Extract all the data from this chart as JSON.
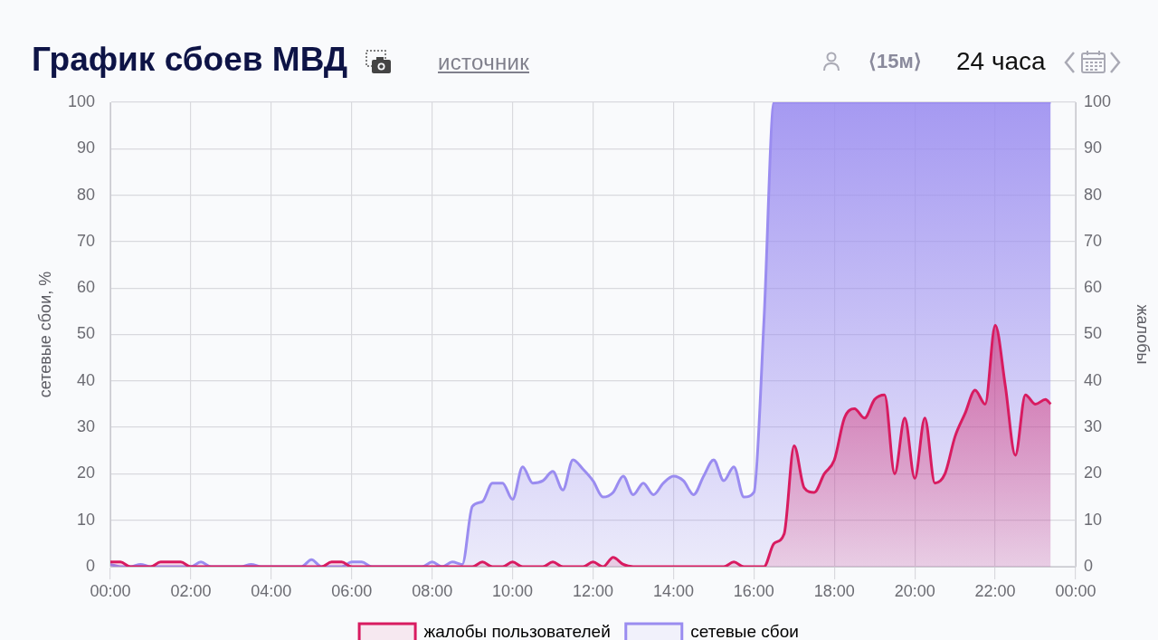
{
  "chart_data": {
    "type": "area",
    "title": "График сбоев МВД",
    "annotations": [
      "источник",
      "⟨15м⟩",
      "24 часа"
    ],
    "ylabel": "сетевые сбои, %",
    "y2label": "жалобы",
    "x": [
      0,
      0.25,
      0.5,
      0.75,
      1,
      1.25,
      1.5,
      1.75,
      2,
      2.25,
      2.5,
      2.75,
      3,
      3.25,
      3.5,
      3.75,
      4,
      4.25,
      4.5,
      4.75,
      5,
      5.25,
      5.5,
      5.75,
      6,
      6.25,
      6.5,
      6.75,
      7,
      7.25,
      7.5,
      7.75,
      8,
      8.25,
      8.5,
      8.75,
      9,
      9.25,
      9.5,
      9.75,
      10,
      10.25,
      10.5,
      10.75,
      11,
      11.25,
      11.5,
      11.75,
      12,
      12.25,
      12.5,
      12.75,
      13,
      13.25,
      13.5,
      13.75,
      14,
      14.25,
      14.5,
      14.75,
      15,
      15.25,
      15.5,
      15.75,
      16,
      16.25,
      16.5,
      16.75,
      17,
      17.25,
      17.5,
      17.75,
      18,
      18.25,
      18.5,
      18.75,
      19,
      19.25,
      19.5,
      19.75,
      20,
      20.25,
      20.5,
      20.75,
      21,
      21.25,
      21.5,
      21.75,
      22,
      22.25,
      22.5,
      22.75,
      23,
      23.25,
      23.38
    ],
    "xlim": [
      0,
      24
    ],
    "xticks": [
      {
        "value": 0,
        "label": "00:00"
      },
      {
        "value": 2,
        "label": "02:00"
      },
      {
        "value": 4,
        "label": "04:00"
      },
      {
        "value": 6,
        "label": "06:00"
      },
      {
        "value": 8,
        "label": "08:00"
      },
      {
        "value": 10,
        "label": "10:00"
      },
      {
        "value": 12,
        "label": "12:00"
      },
      {
        "value": 14,
        "label": "14:00"
      },
      {
        "value": 16,
        "label": "16:00"
      },
      {
        "value": 18,
        "label": "18:00"
      },
      {
        "value": 20,
        "label": "20:00"
      },
      {
        "value": 22,
        "label": "22:00"
      },
      {
        "value": 24,
        "label": "00:00"
      }
    ],
    "ylim": [
      0,
      100
    ],
    "yticks": [
      0,
      10,
      20,
      30,
      40,
      50,
      60,
      70,
      80,
      90,
      100
    ],
    "y2lim": [
      0,
      100
    ],
    "y2ticks": [
      0,
      10,
      20,
      30,
      40,
      50,
      60,
      70,
      80,
      90,
      100
    ],
    "grid": true,
    "legend": "bottom",
    "series": [
      {
        "name": "жалобы пользователей",
        "color": "#d81b60",
        "axis": "y2",
        "values": [
          1,
          1,
          0,
          0,
          0,
          1,
          1,
          1,
          0,
          0,
          0,
          0,
          0,
          0,
          0,
          0,
          0,
          0,
          0,
          0,
          0,
          0,
          1,
          1,
          0,
          0,
          0,
          0,
          0,
          0,
          0,
          0,
          0,
          0,
          0,
          0,
          0,
          1,
          0,
          0,
          1,
          0,
          0,
          0,
          1,
          0,
          0,
          0,
          1,
          0,
          2,
          0.5,
          0,
          0,
          0,
          0,
          0,
          0,
          0,
          0,
          0,
          0,
          1,
          0,
          0,
          0,
          5,
          7,
          26,
          17,
          16,
          20,
          23,
          32,
          34,
          32,
          36,
          37,
          20,
          32,
          19,
          32,
          18,
          20,
          28,
          33,
          38,
          35,
          52,
          39,
          24,
          37,
          35,
          36,
          35
        ]
      },
      {
        "name": "сетевые сбои",
        "color": "#9a8cf0",
        "values": [
          0.5,
          0,
          0,
          0.5,
          0,
          0,
          0,
          0,
          0,
          1,
          0,
          0,
          0,
          0,
          0.5,
          0,
          0,
          0,
          0,
          0,
          1.5,
          0,
          0,
          0,
          1,
          1,
          0,
          0,
          0,
          0,
          0,
          0,
          1,
          0,
          1,
          0.5,
          13,
          14,
          18,
          18,
          14.5,
          21.5,
          18,
          18.5,
          20.5,
          16.5,
          23,
          21,
          18.5,
          15,
          16,
          19.5,
          15.5,
          18,
          15.5,
          18,
          19.5,
          18.5,
          15.5,
          19.5,
          23,
          18.5,
          21.5,
          15,
          16,
          53,
          100,
          100,
          100,
          100,
          100,
          100,
          100,
          100,
          100,
          100,
          100,
          100,
          100,
          100,
          100,
          100,
          100,
          100,
          100,
          100,
          100,
          100,
          100,
          100,
          100,
          100,
          100,
          100,
          100
        ]
      }
    ]
  }
}
